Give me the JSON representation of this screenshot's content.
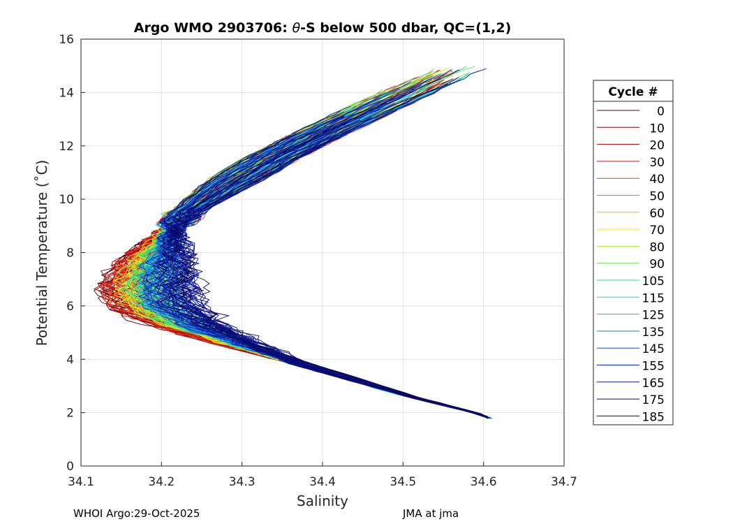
{
  "chart_data": {
    "type": "line",
    "title_prefix": "Argo WMO 2903706: ",
    "title_theta": "θ",
    "title_suffix": "-S below 500 dbar,  QC=(1,2)",
    "xlabel": "Salinity",
    "ylabel": "Potential Temperature (˚C)",
    "xlim": [
      34.1,
      34.7
    ],
    "ylim": [
      0,
      16
    ],
    "xticks": [
      "34.1",
      "34.2",
      "34.3",
      "34.4",
      "34.5",
      "34.6",
      "34.7"
    ],
    "yticks": [
      "0",
      "2",
      "4",
      "6",
      "8",
      "10",
      "12",
      "14",
      "16"
    ],
    "grid": true,
    "legend": {
      "title": "Cycle #",
      "placement": "right, outside axes",
      "entries": [
        {
          "label": "0",
          "color": "#5a0000"
        },
        {
          "label": "10",
          "color": "#8a0000"
        },
        {
          "label": "20",
          "color": "#b00000"
        },
        {
          "label": "30",
          "color": "#d41010"
        },
        {
          "label": "40",
          "color": "#e83a1c"
        },
        {
          "label": "50",
          "color": "#f07814"
        },
        {
          "label": "60",
          "color": "#f0b400"
        },
        {
          "label": "70",
          "color": "#e8ee18"
        },
        {
          "label": "80",
          "color": "#a4ee28"
        },
        {
          "label": "90",
          "color": "#5aea3c"
        },
        {
          "label": "105",
          "color": "#1ee68a"
        },
        {
          "label": "115",
          "color": "#12d8c8"
        },
        {
          "label": "125",
          "color": "#10b4e6"
        },
        {
          "label": "135",
          "color": "#1282dc"
        },
        {
          "label": "145",
          "color": "#1454d2"
        },
        {
          "label": "155",
          "color": "#0c28c0"
        },
        {
          "label": "165",
          "color": "#0a14a0"
        },
        {
          "label": "175",
          "color": "#0a0c86"
        },
        {
          "label": "185",
          "color": "#0a0a62"
        }
      ]
    },
    "profile_shape": {
      "description": "Each cycle is a theta-S curve: salinity decreases from surface-layer values to a minimum near theta 6 C, then increases toward the deep point.",
      "points_theta_salinity": [
        [
          15.6,
          34.627
        ],
        [
          14.8,
          34.56
        ],
        [
          13.5,
          34.47
        ],
        [
          12.5,
          34.4
        ],
        [
          11.5,
          34.335
        ],
        [
          10.5,
          34.28
        ],
        [
          9.5,
          34.23
        ],
        [
          8.5,
          34.2
        ],
        [
          7.5,
          34.18
        ],
        [
          6.7,
          34.17
        ],
        [
          6.0,
          34.18
        ],
        [
          5.3,
          34.22
        ],
        [
          4.5,
          34.3
        ],
        [
          3.5,
          34.41
        ],
        [
          2.6,
          34.51
        ],
        [
          1.95,
          34.595
        ],
        [
          1.78,
          34.608
        ]
      ]
    }
  },
  "footer": {
    "left": "WHOI Argo:29-Oct-2025",
    "right": "JMA at jma"
  }
}
